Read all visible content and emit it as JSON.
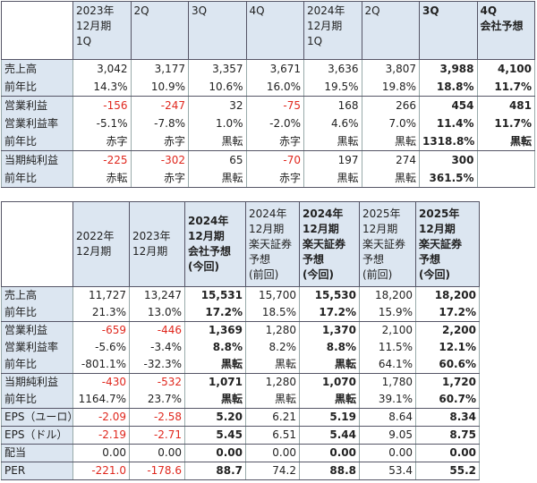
{
  "tables": [
    {
      "header": [
        null,
        "2023年\n12月期\n1Q",
        "2Q",
        "3Q",
        "4Q",
        "2024年\n12月期\n1Q",
        "2Q",
        "3Q",
        "4Q\n会社予想"
      ],
      "groups": [
        {
          "rows": [
            [
              "売上高",
              "3,042",
              "3,177",
              "3,357",
              "3,671",
              "3,636",
              "3,807",
              "3,988",
              "4,100"
            ],
            [
              "前年比",
              "14.3%",
              "10.9%",
              "10.6%",
              "16.0%",
              "19.5%",
              "19.8%",
              "18.8%",
              "11.7%"
            ]
          ]
        },
        {
          "rows": [
            [
              "営業利益",
              "-156",
              "-247",
              "32",
              "-75",
              "168",
              "266",
              "454",
              "481"
            ],
            [
              "営業利益率",
              "-5.1%",
              "-7.8%",
              "1.0%",
              "-2.0%",
              "4.6%",
              "7.0%",
              "11.4%",
              "11.7%"
            ],
            [
              "前年比",
              "赤字",
              "赤字",
              "黒転",
              "赤字",
              "黒転",
              "黒転",
              "1318.8%",
              "黒転"
            ]
          ]
        },
        {
          "rows": [
            [
              "当期純利益",
              "-225",
              "-302",
              "65",
              "-70",
              "197",
              "274",
              "300",
              null
            ],
            [
              "前年比",
              "赤転",
              "赤字",
              "黒転",
              "赤字",
              "黒転",
              "黒転",
              "361.5%",
              null
            ]
          ]
        }
      ]
    },
    {
      "header": [
        null,
        "2022年\n12月期",
        "2023年\n12月期",
        "2024年\n12月期\n会社予想\n(今回)",
        "2024年\n12月期\n楽天証券\n予想\n(前回)",
        "2024年\n12月期\n楽天証券\n予想\n(今回)",
        "2025年\n12月期\n楽天証券\n予想\n(前回)",
        "2025年\n12月期\n楽天証券\n予想\n(今回)"
      ],
      "groups": [
        {
          "rows": [
            [
              "売上高",
              "11,727",
              "13,247",
              "15,531",
              "15,700",
              "15,530",
              "18,200",
              "18,200"
            ],
            [
              "前年比",
              "21.3%",
              "13.0%",
              "17.2%",
              "18.5%",
              "17.2%",
              "15.9%",
              "17.2%"
            ]
          ]
        },
        {
          "rows": [
            [
              "営業利益",
              "-659",
              "-446",
              "1,369",
              "1,280",
              "1,370",
              "2,100",
              "2,200"
            ],
            [
              "営業利益率",
              "-5.6%",
              "-3.4%",
              "8.8%",
              "8.2%",
              "8.8%",
              "11.5%",
              "12.1%"
            ],
            [
              "前年比",
              "-801.1%",
              "-32.3%",
              "黒転",
              "黒転",
              "黒転",
              "64.1%",
              "60.6%"
            ]
          ]
        },
        {
          "rows": [
            [
              "当期純利益",
              "-430",
              "-532",
              "1,071",
              "1,280",
              "1,070",
              "1,780",
              "1,720"
            ],
            [
              "前年比",
              "1164.7%",
              "23.7%",
              "黒転",
              "黒転",
              "黒転",
              "39.1%",
              "60.7%"
            ]
          ]
        },
        {
          "rows": [
            [
              "EPS（ユーロ）",
              "-2.09",
              "-2.58",
              "5.20",
              "6.21",
              "5.19",
              "8.64",
              "8.34"
            ]
          ]
        },
        {
          "rows": [
            [
              "EPS（ドル）",
              "-2.19",
              "-2.71",
              "5.45",
              "6.51",
              "5.44",
              "9.05",
              "8.75"
            ]
          ]
        },
        {
          "rows": [
            [
              "配当",
              "0.00",
              "0.00",
              "0.00",
              "0.00",
              "0.00",
              "0.00",
              "0.00"
            ]
          ]
        },
        {
          "rows": [
            [
              "PER",
              "-221.0",
              "-178.6",
              "88.7",
              "74.2",
              "88.8",
              "53.4",
              "55.2"
            ]
          ]
        }
      ]
    }
  ]
}
